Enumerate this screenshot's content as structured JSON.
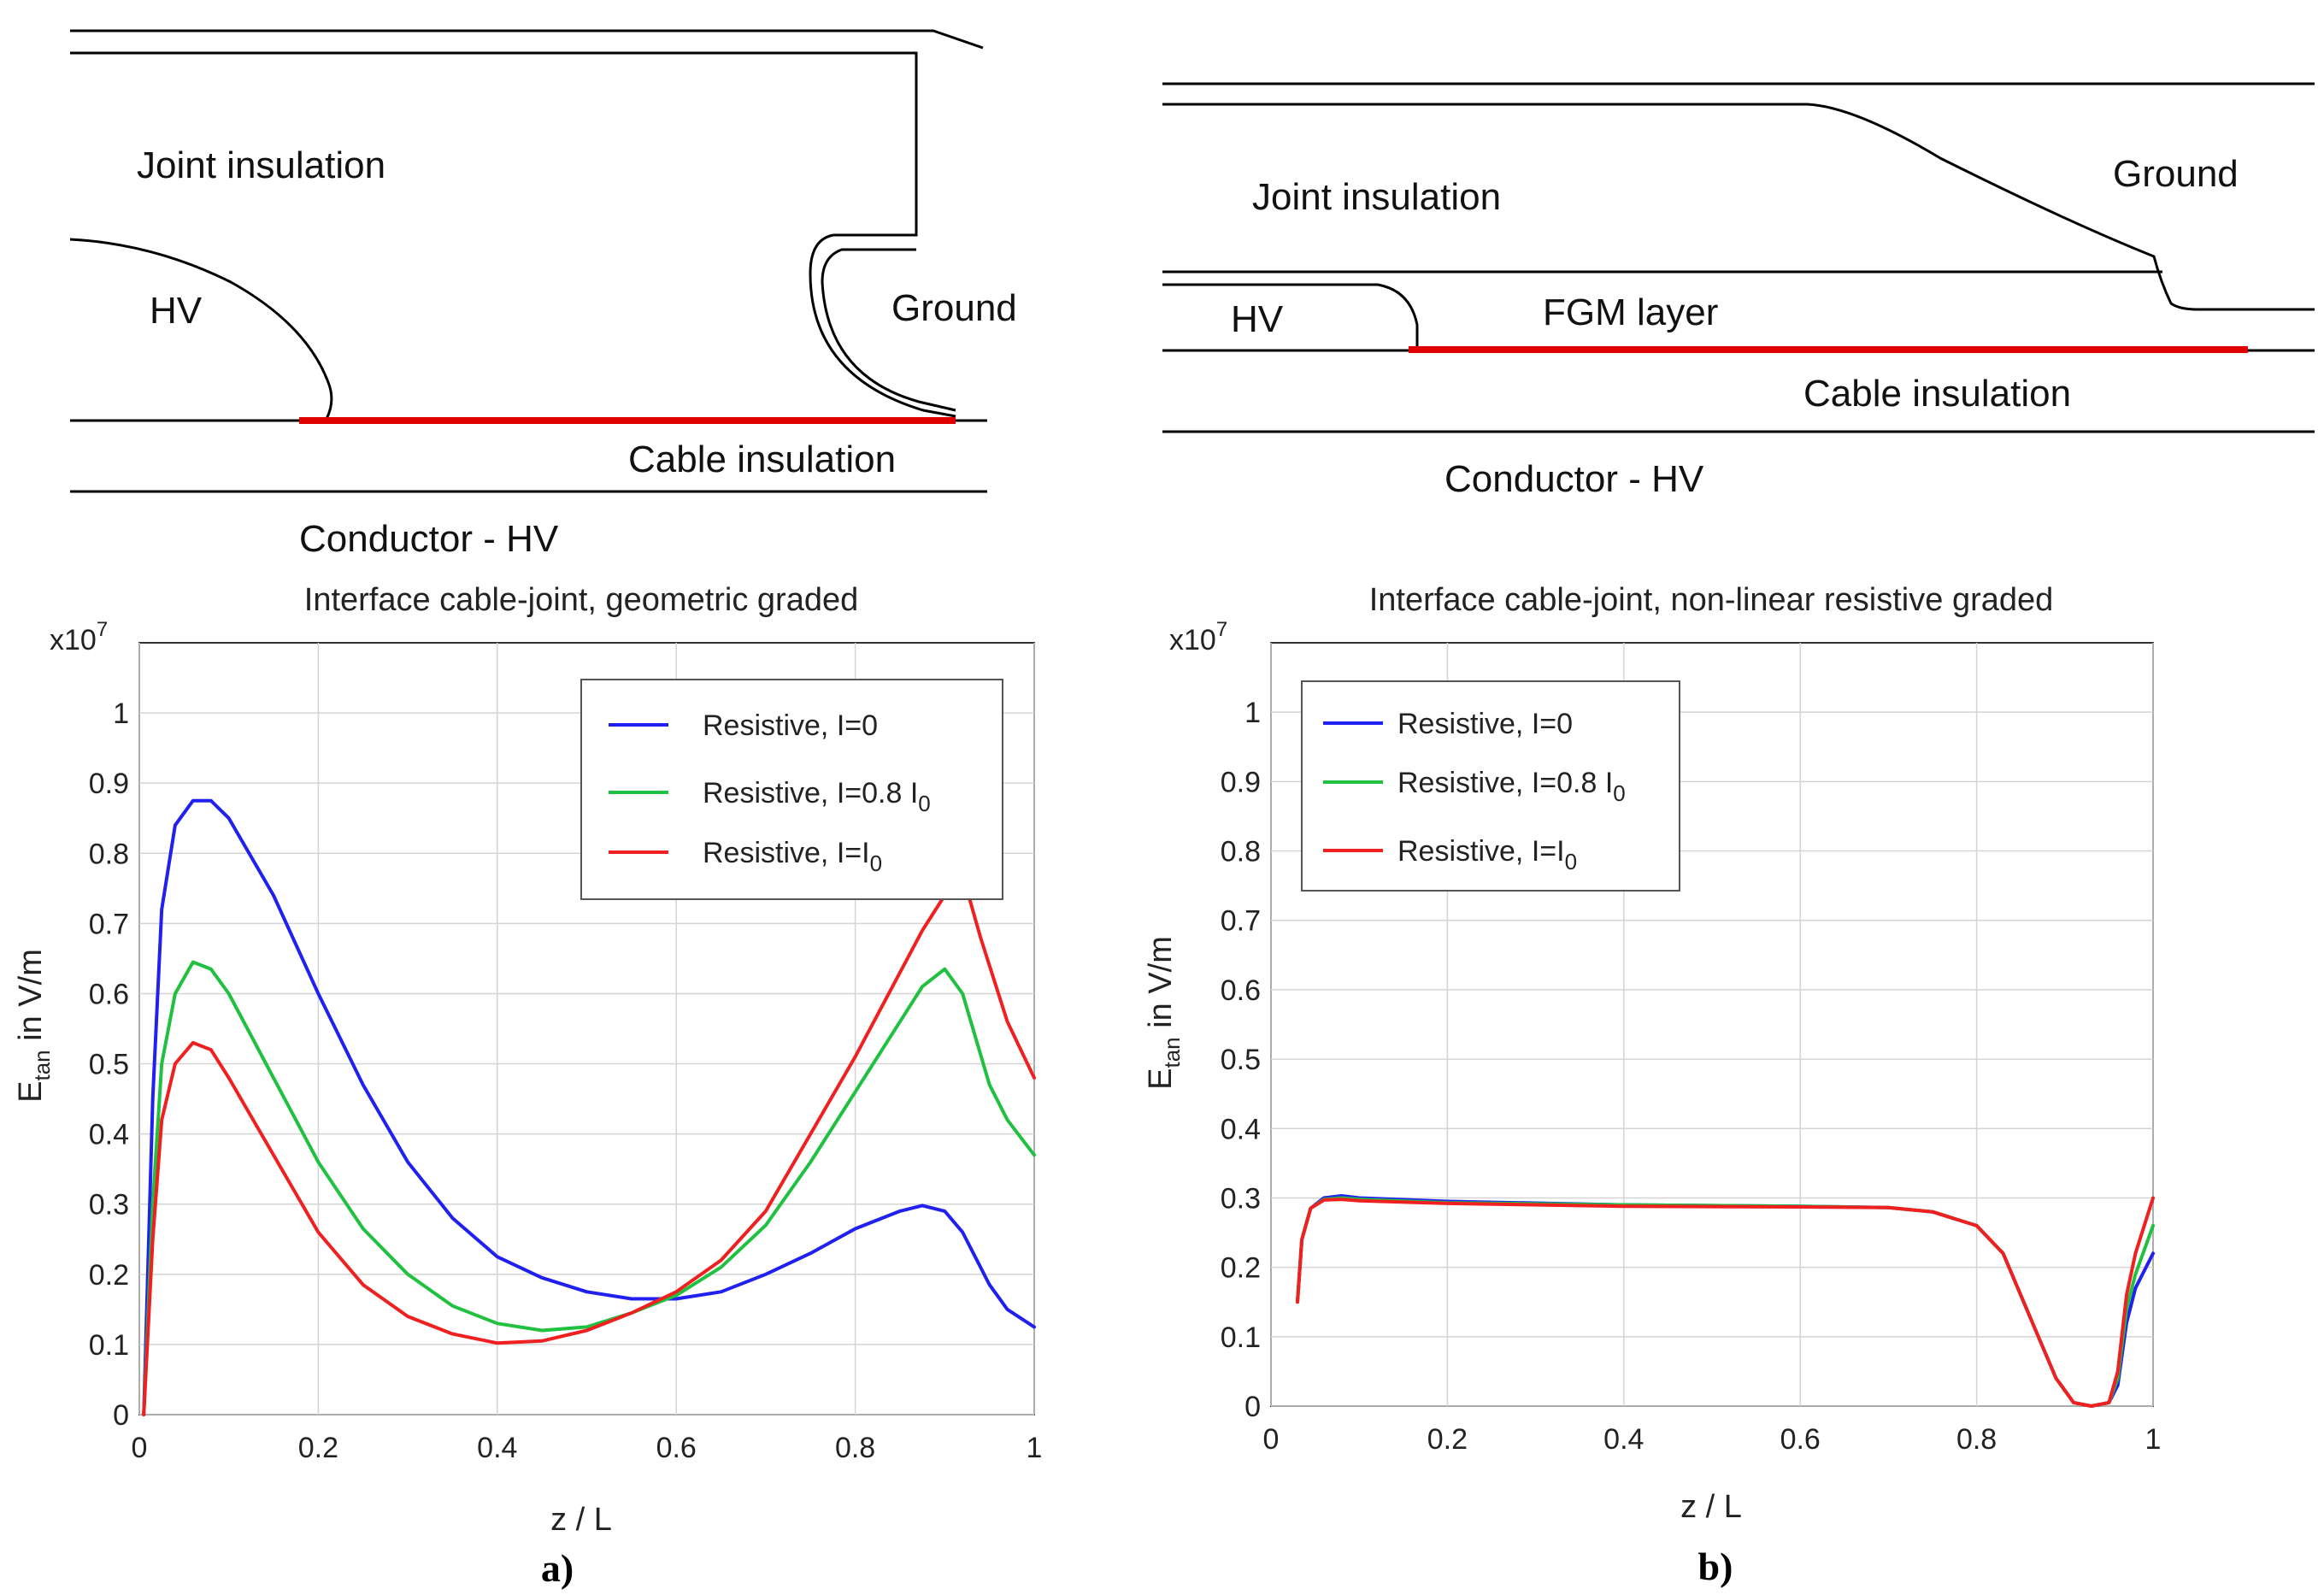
{
  "diagram_a": {
    "joint_insulation": "Joint insulation",
    "hv": "HV",
    "ground": "Ground",
    "cable_insulation": "Cable insulation",
    "conductor": "Conductor - HV"
  },
  "diagram_b": {
    "joint_insulation": "Joint insulation",
    "ground": "Ground",
    "hv": "HV",
    "fgm_layer": "FGM layer",
    "cable_insulation": "Cable insulation",
    "conductor": "Conductor - HV"
  },
  "colors": {
    "blue": "#2020f0",
    "green": "#20c040",
    "red": "#f02020",
    "highlight": "#e00000"
  },
  "chart_data": [
    {
      "type": "line",
      "title": "Interface cable-joint, geometric graded",
      "xlabel": "z / L",
      "ylabel_main": "E",
      "ylabel_sub": "tan",
      "ylabel_rest": " in V/m",
      "exponent_label": "x10",
      "exponent_power": "7",
      "xlim": [
        0,
        1
      ],
      "ylim": [
        0,
        1.1
      ],
      "xticks": [
        "0",
        "0.2",
        "0.4",
        "0.6",
        "0.8",
        "1"
      ],
      "yticks": [
        "0",
        "0.1",
        "0.2",
        "0.3",
        "0.4",
        "0.5",
        "0.6",
        "0.7",
        "0.8",
        "0.9",
        "1"
      ],
      "panel_label": "a)",
      "legend": [
        {
          "label": "Resistive, I=0",
          "color": "#2020f0"
        },
        {
          "label": "Resistive, I=0.8 I",
          "sub": "0",
          "color": "#20c040"
        },
        {
          "label": "Resistive, I=I",
          "sub": "0",
          "color": "#f02020"
        }
      ],
      "series": [
        {
          "name": "Resistive, I=0",
          "color": "#2020f0",
          "x": [
            0.005,
            0.015,
            0.025,
            0.04,
            0.06,
            0.08,
            0.1,
            0.15,
            0.2,
            0.25,
            0.3,
            0.35,
            0.4,
            0.45,
            0.5,
            0.55,
            0.6,
            0.65,
            0.7,
            0.75,
            0.8,
            0.85,
            0.875,
            0.9,
            0.92,
            0.95,
            0.97,
            1.0
          ],
          "y": [
            0.0,
            0.45,
            0.72,
            0.84,
            0.875,
            0.875,
            0.85,
            0.74,
            0.6,
            0.47,
            0.36,
            0.28,
            0.225,
            0.195,
            0.175,
            0.165,
            0.165,
            0.175,
            0.2,
            0.23,
            0.265,
            0.29,
            0.298,
            0.29,
            0.26,
            0.185,
            0.15,
            0.125
          ]
        },
        {
          "name": "Resistive, I=0.8 I0",
          "color": "#20c040",
          "x": [
            0.005,
            0.015,
            0.025,
            0.04,
            0.06,
            0.08,
            0.1,
            0.15,
            0.2,
            0.25,
            0.3,
            0.35,
            0.4,
            0.45,
            0.5,
            0.55,
            0.6,
            0.65,
            0.7,
            0.75,
            0.8,
            0.85,
            0.875,
            0.9,
            0.92,
            0.95,
            0.97,
            1.0
          ],
          "y": [
            0.0,
            0.3,
            0.5,
            0.6,
            0.645,
            0.635,
            0.6,
            0.48,
            0.36,
            0.265,
            0.2,
            0.155,
            0.13,
            0.12,
            0.125,
            0.145,
            0.17,
            0.21,
            0.27,
            0.36,
            0.46,
            0.56,
            0.61,
            0.635,
            0.6,
            0.47,
            0.42,
            0.37
          ]
        },
        {
          "name": "Resistive, I=I0",
          "color": "#f02020",
          "x": [
            0.005,
            0.015,
            0.025,
            0.04,
            0.06,
            0.08,
            0.1,
            0.15,
            0.2,
            0.25,
            0.3,
            0.35,
            0.4,
            0.45,
            0.5,
            0.55,
            0.6,
            0.65,
            0.7,
            0.75,
            0.8,
            0.85,
            0.875,
            0.9,
            0.92,
            0.94,
            0.97,
            1.0
          ],
          "y": [
            0.0,
            0.25,
            0.42,
            0.5,
            0.53,
            0.52,
            0.48,
            0.37,
            0.26,
            0.185,
            0.14,
            0.115,
            0.102,
            0.105,
            0.12,
            0.145,
            0.175,
            0.22,
            0.29,
            0.4,
            0.51,
            0.63,
            0.69,
            0.74,
            0.77,
            0.68,
            0.56,
            0.48
          ]
        }
      ]
    },
    {
      "type": "line",
      "title": "Interface cable-joint, non-linear resistive graded",
      "xlabel": "z / L",
      "ylabel_main": "E",
      "ylabel_sub": "tan",
      "ylabel_rest": " in V/m",
      "exponent_label": "x10",
      "exponent_power": "7",
      "xlim": [
        0,
        1
      ],
      "ylim": [
        0,
        1.1
      ],
      "xticks": [
        "0",
        "0.2",
        "0.4",
        "0.6",
        "0.8",
        "1"
      ],
      "yticks": [
        "0",
        "0.1",
        "0.2",
        "0.3",
        "0.4",
        "0.5",
        "0.6",
        "0.7",
        "0.8",
        "0.9",
        "1"
      ],
      "panel_label": "b)",
      "legend": [
        {
          "label": "Resistive, I=0",
          "color": "#2020f0"
        },
        {
          "label": "Resistive, I=0.8 I",
          "sub": "0",
          "color": "#20c040"
        },
        {
          "label": "Resistive, I=I",
          "sub": "0",
          "color": "#f02020"
        }
      ],
      "series": [
        {
          "name": "Resistive, I=0",
          "color": "#2020f0",
          "x": [
            0.03,
            0.035,
            0.045,
            0.06,
            0.08,
            0.1,
            0.2,
            0.4,
            0.6,
            0.7,
            0.75,
            0.8,
            0.83,
            0.86,
            0.89,
            0.91,
            0.93,
            0.95,
            0.96,
            0.97,
            0.98,
            1.0
          ],
          "y": [
            0.15,
            0.24,
            0.285,
            0.3,
            0.303,
            0.3,
            0.295,
            0.29,
            0.288,
            0.286,
            0.28,
            0.26,
            0.22,
            0.13,
            0.04,
            0.005,
            0.0,
            0.005,
            0.03,
            0.12,
            0.17,
            0.22
          ]
        },
        {
          "name": "Resistive, I=0.8 I0",
          "color": "#20c040",
          "x": [
            0.03,
            0.035,
            0.045,
            0.06,
            0.08,
            0.1,
            0.2,
            0.4,
            0.6,
            0.7,
            0.75,
            0.8,
            0.83,
            0.86,
            0.89,
            0.91,
            0.93,
            0.95,
            0.96,
            0.97,
            0.98,
            1.0
          ],
          "y": [
            0.15,
            0.24,
            0.285,
            0.298,
            0.3,
            0.298,
            0.293,
            0.29,
            0.288,
            0.286,
            0.28,
            0.26,
            0.22,
            0.13,
            0.04,
            0.005,
            0.0,
            0.005,
            0.04,
            0.14,
            0.19,
            0.26
          ]
        },
        {
          "name": "Resistive, I=I0",
          "color": "#f02020",
          "x": [
            0.03,
            0.035,
            0.045,
            0.06,
            0.08,
            0.1,
            0.2,
            0.4,
            0.6,
            0.7,
            0.75,
            0.8,
            0.83,
            0.86,
            0.89,
            0.91,
            0.93,
            0.95,
            0.96,
            0.97,
            0.98,
            1.0
          ],
          "y": [
            0.15,
            0.24,
            0.285,
            0.297,
            0.298,
            0.296,
            0.292,
            0.288,
            0.287,
            0.286,
            0.28,
            0.26,
            0.22,
            0.13,
            0.04,
            0.005,
            0.0,
            0.005,
            0.05,
            0.16,
            0.22,
            0.3
          ]
        }
      ]
    }
  ]
}
